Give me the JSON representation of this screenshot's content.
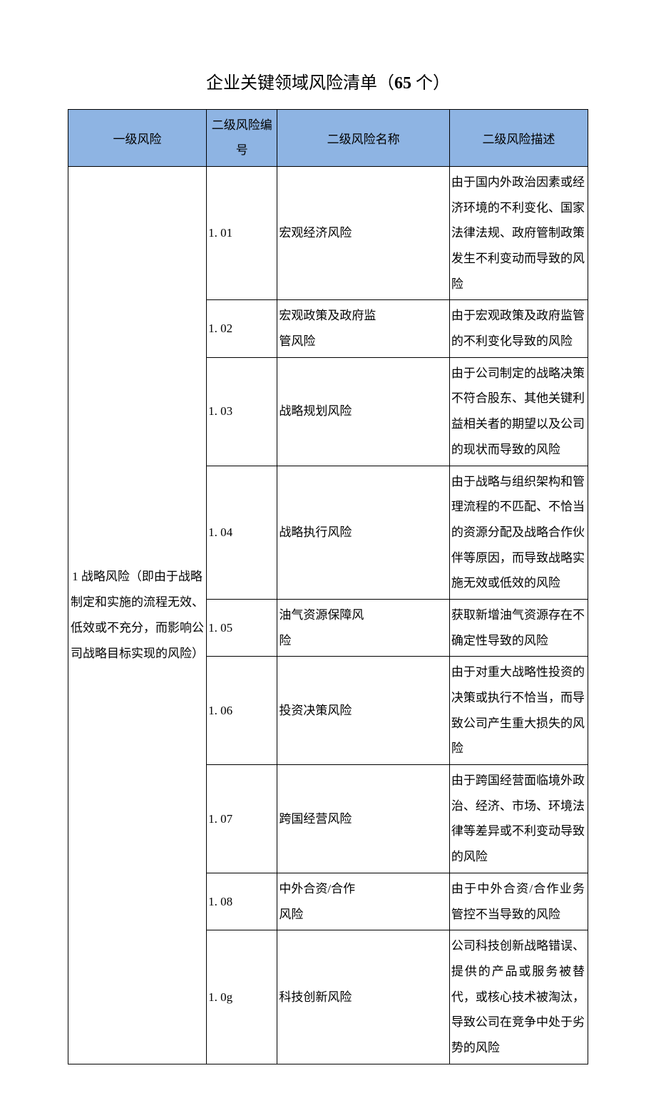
{
  "document": {
    "title_prefix": "企业关键领域风险清单（",
    "title_count": "65",
    "title_suffix": " 个）"
  },
  "table": {
    "headers": {
      "col1": "一级风险",
      "col2": "二级风险编号",
      "col3": "二级风险名称",
      "col4": "二级风险描述"
    },
    "header_bg_color": "#8eb4e3",
    "border_color": "#000000",
    "category": {
      "label": "1 战略风险（即由于战略制定和实施的流程无效、低效或不充分，而影响公司战略目标实现的风险）",
      "rowspan": 9
    },
    "rows": [
      {
        "code": "1. 01",
        "name": "宏观经济风险",
        "desc": "由于国内外政治因素或经济环境的不利变化、国家法律法规、政府管制政策发生不利变动而导致的风险"
      },
      {
        "code": "1. 02",
        "name": "宏观政策及政府监\n管风险",
        "desc": "由于宏观政策及政府监管的不利变化导致的风险"
      },
      {
        "code": "1. 03",
        "name": "战略规划风险",
        "desc": "由于公司制定的战略决策不符合股东、其他关键利益相关者的期望以及公司的现状而导致的风险"
      },
      {
        "code": "1. 04",
        "name": "战略执行风险",
        "desc": "由于战略与组织架构和管理流程的不匹配、不恰当的资源分配及战略合作伙伴等原因，而导致战略实施无效或低效的风险"
      },
      {
        "code": "1. 05",
        "name": "油气资源保障风险",
        "desc": "获取新增油气资源存在不确定性导致的风险"
      },
      {
        "code": "1. 06",
        "name": "投资决策风险",
        "desc": "由于对重大战略性投资的决策或执行不恰当，而导致公司产生重大损失的风险"
      },
      {
        "code": "1. 07",
        "name": "跨国经营风险",
        "desc": "由于跨国经营面临境外政治、经济、市场、环境法律等差异或不利变动导致的风险"
      },
      {
        "code": "1. 08",
        "name": "中外合资/合作风险",
        "desc": "由于中外合资/合作业务管控不当导致的风险"
      },
      {
        "code": "1. 0g",
        "name": "科技创新风险",
        "desc": "公司科技创新战略错误、提供的产品或服务被替代，或核心技术被淘汰，导致公司在竞争中处于劣势的风险"
      }
    ]
  }
}
